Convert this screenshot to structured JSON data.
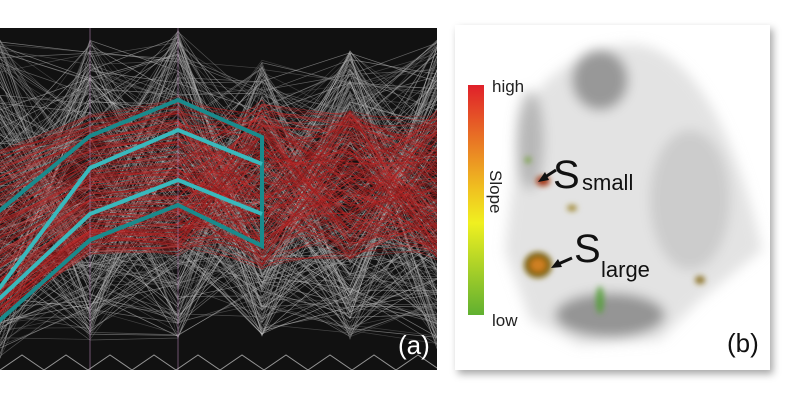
{
  "panels": [
    {
      "label": "(a)"
    },
    {
      "label": "(b)",
      "colorbar": {
        "high": "high",
        "low": "low",
        "title": "Slope"
      },
      "annotations": [
        {
          "letter": "S",
          "subscript": "small"
        },
        {
          "letter": "S",
          "subscript": "large"
        }
      ]
    }
  ]
}
